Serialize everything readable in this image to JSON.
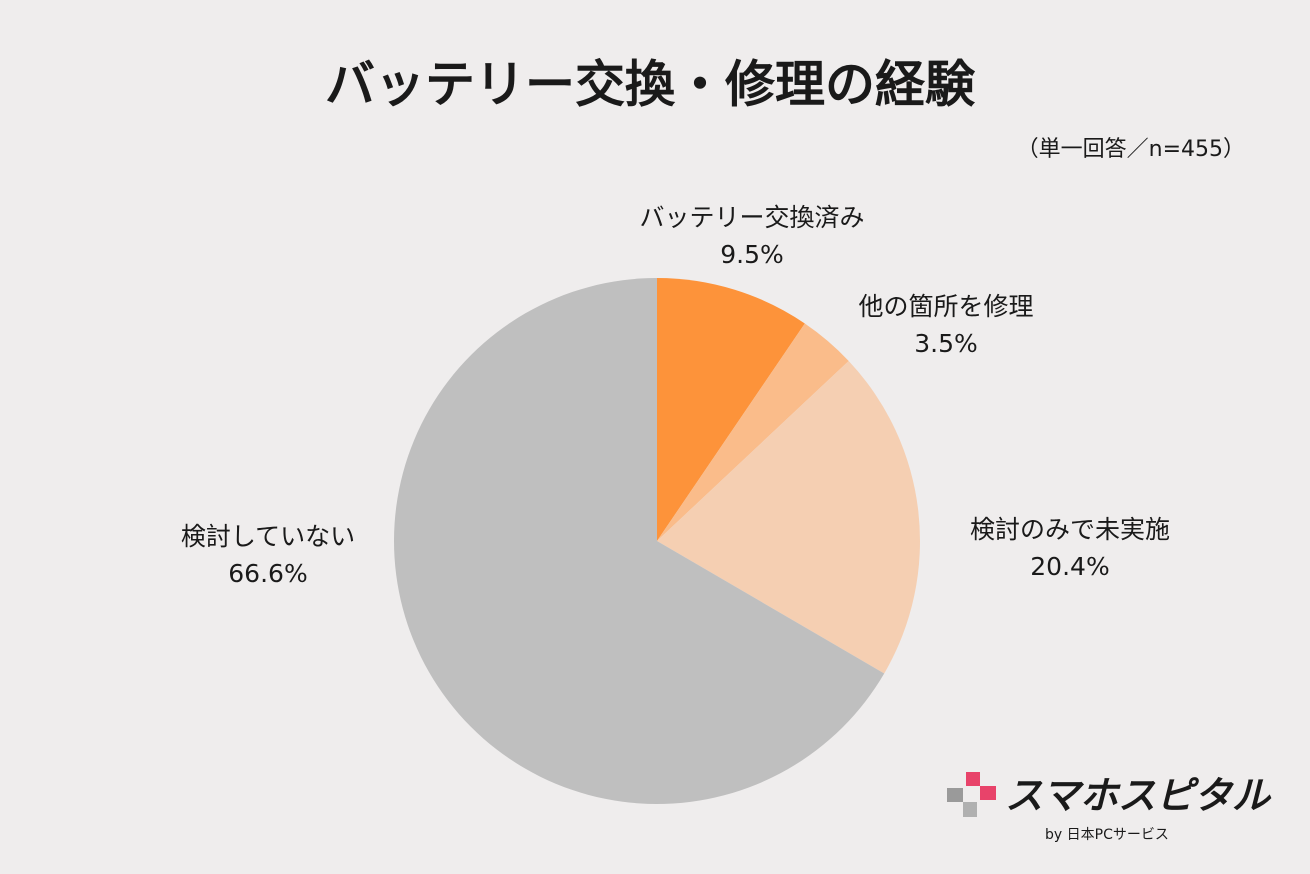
{
  "chart_data": {
    "type": "pie",
    "title": "バッテリー交換・修理の経験",
    "subtitle": "（単一回答／n=455）",
    "categories": [
      "バッテリー交換済み",
      "他の箇所を修理",
      "検討のみで未実施",
      "検討していない"
    ],
    "values": [
      9.5,
      3.5,
      20.4,
      66.6
    ],
    "value_labels": [
      "9.5%",
      "3.5%",
      "20.4%",
      "66.6%"
    ],
    "colors": [
      "#fd933a",
      "#fabc8a",
      "#f5cfb2",
      "#bfbfbf"
    ],
    "logo_text": "スマホスピタル",
    "logo_subtext": "by 日本PCサービス"
  }
}
